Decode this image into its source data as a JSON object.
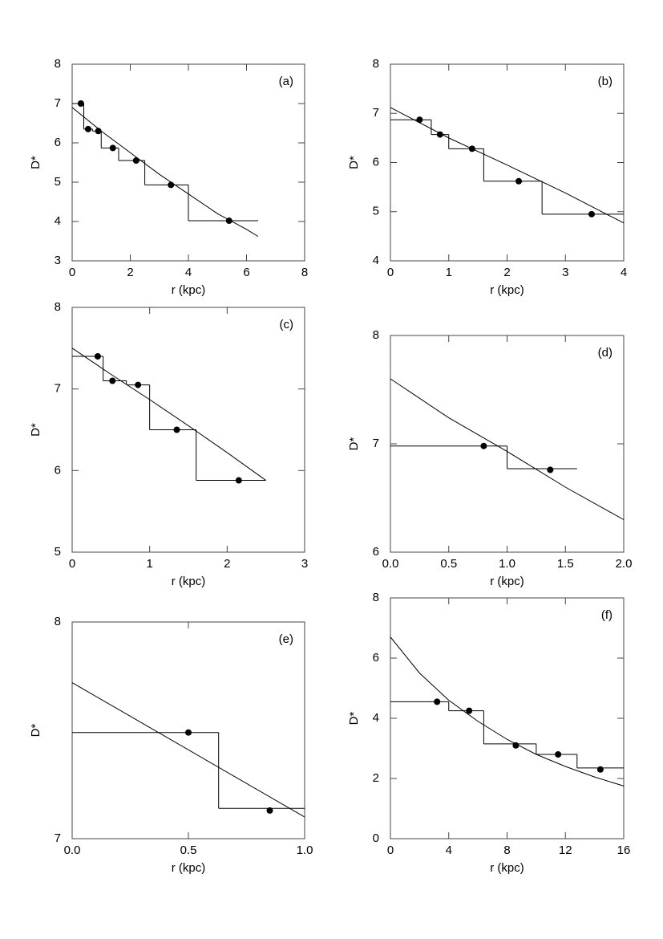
{
  "chart_data": [
    {
      "type": "scatter",
      "title": "(a)",
      "xlabel": "r (kpc)",
      "ylabel": "D*",
      "xlim": [
        0,
        8
      ],
      "xticks": [
        0,
        2,
        4,
        6,
        8
      ],
      "ylim": [
        3,
        8
      ],
      "yticks": [
        3,
        4,
        5,
        6,
        7,
        8
      ],
      "color": "#000000",
      "points": {
        "x": [
          0.3,
          0.55,
          0.9,
          1.4,
          2.2,
          3.4,
          5.4
        ],
        "y": [
          7.0,
          6.35,
          6.3,
          5.87,
          5.55,
          4.93,
          4.02
        ]
      },
      "steps": {
        "bins": [
          0,
          0.4,
          0.7,
          1.0,
          1.6,
          2.5,
          4.0,
          6.4
        ],
        "values": [
          7.0,
          6.35,
          6.3,
          5.87,
          5.55,
          4.93,
          4.02
        ]
      },
      "curve": {
        "x": [
          0,
          1,
          2,
          3,
          4,
          5,
          6,
          6.4
        ],
        "y": [
          6.9,
          6.3,
          5.75,
          5.2,
          4.7,
          4.2,
          3.8,
          3.62
        ]
      }
    },
    {
      "type": "scatter",
      "title": "(b)",
      "xlabel": "r (kpc)",
      "ylabel": "D*",
      "xlim": [
        0,
        4
      ],
      "xticks": [
        0,
        1,
        2,
        3,
        4
      ],
      "ylim": [
        4,
        8
      ],
      "yticks": [
        4,
        5,
        6,
        7,
        8
      ],
      "color": "#000000",
      "points": {
        "x": [
          0.5,
          0.85,
          1.4,
          2.2,
          3.45
        ],
        "y": [
          6.87,
          6.57,
          6.28,
          5.62,
          4.95
        ]
      },
      "steps": {
        "bins": [
          0,
          0.7,
          1.0,
          1.6,
          2.6,
          4.0
        ],
        "values": [
          6.87,
          6.57,
          6.28,
          5.62,
          4.95
        ]
      },
      "curve": {
        "x": [
          0,
          1,
          2,
          3,
          4
        ],
        "y": [
          7.12,
          6.5,
          5.95,
          5.38,
          4.77
        ]
      }
    },
    {
      "type": "scatter",
      "title": "(c)",
      "xlabel": "r (kpc)",
      "ylabel": "D*",
      "xlim": [
        0,
        3
      ],
      "xticks": [
        0,
        1,
        2,
        3
      ],
      "ylim": [
        5,
        8
      ],
      "yticks": [
        5,
        6,
        7,
        8
      ],
      "color": "#000000",
      "points": {
        "x": [
          0.33,
          0.52,
          0.85,
          1.35,
          2.15
        ],
        "y": [
          7.4,
          7.1,
          7.05,
          6.5,
          5.88
        ]
      },
      "steps": {
        "bins": [
          0,
          0.4,
          0.7,
          1.0,
          1.6,
          2.5
        ],
        "values": [
          7.4,
          7.1,
          7.05,
          6.5,
          5.88
        ]
      },
      "curve": {
        "x": [
          0,
          0.5,
          1,
          1.5,
          2,
          2.5
        ],
        "y": [
          7.5,
          7.18,
          6.87,
          6.55,
          6.22,
          5.88
        ]
      }
    },
    {
      "type": "scatter",
      "title": "(d)",
      "xlabel": "r (kpc)",
      "ylabel": "D*",
      "xlim": [
        0,
        2
      ],
      "xticks": [
        {
          "value": 0,
          "label": "0.0"
        },
        {
          "value": 0.5,
          "label": "0.5"
        },
        {
          "value": 1,
          "label": "1.0"
        },
        {
          "value": 1.5,
          "label": "1.5"
        },
        {
          "value": 2,
          "label": "2.0"
        }
      ],
      "ylim": [
        6,
        8
      ],
      "yticks": [
        6,
        7,
        8
      ],
      "color": "#000000",
      "points": {
        "x": [
          0.8,
          1.37
        ],
        "y": [
          6.98,
          6.76
        ]
      },
      "steps": {
        "bins": [
          0,
          1.0,
          1.6
        ],
        "values": [
          6.98,
          6.77
        ]
      },
      "curve": {
        "x": [
          0,
          0.5,
          1,
          1.5,
          2
        ],
        "y": [
          7.6,
          7.24,
          6.93,
          6.6,
          6.3
        ]
      }
    },
    {
      "type": "scatter",
      "title": "(e)",
      "xlabel": "r (kpc)",
      "ylabel": "D*",
      "xlim": [
        0,
        1
      ],
      "xticks": [
        {
          "value": 0,
          "label": "0.0"
        },
        {
          "value": 0.5,
          "label": "0.5"
        },
        {
          "value": 1,
          "label": "1.0"
        }
      ],
      "ylim": [
        7,
        8
      ],
      "yticks": [
        7,
        8
      ],
      "color": "#000000",
      "points": {
        "x": [
          0.5,
          0.85
        ],
        "y": [
          7.49,
          7.13
        ]
      },
      "steps": {
        "bins": [
          0,
          0.63,
          1.0
        ],
        "values": [
          7.49,
          7.14
        ]
      },
      "curve": {
        "x": [
          0,
          1
        ],
        "y": [
          7.72,
          7.1
        ]
      }
    },
    {
      "type": "scatter",
      "title": "(f)",
      "xlabel": "r (kpc)",
      "ylabel": "D*",
      "xlim": [
        0,
        16
      ],
      "xticks": [
        0,
        4,
        8,
        12,
        16
      ],
      "ylim": [
        0,
        8
      ],
      "yticks": [
        0,
        2,
        4,
        6,
        8
      ],
      "color": "#000000",
      "points": {
        "x": [
          3.2,
          5.4,
          8.6,
          11.5,
          14.4
        ],
        "y": [
          4.55,
          4.25,
          3.1,
          2.8,
          2.3
        ]
      },
      "steps": {
        "bins": [
          0,
          4,
          6.4,
          10,
          12.8,
          16
        ],
        "values": [
          4.55,
          4.25,
          3.15,
          2.8,
          2.35
        ]
      },
      "curve": {
        "x": [
          0,
          2,
          4,
          6,
          8,
          10,
          12,
          14,
          16
        ],
        "y": [
          6.7,
          5.5,
          4.6,
          3.9,
          3.3,
          2.8,
          2.4,
          2.05,
          1.75
        ]
      }
    }
  ]
}
